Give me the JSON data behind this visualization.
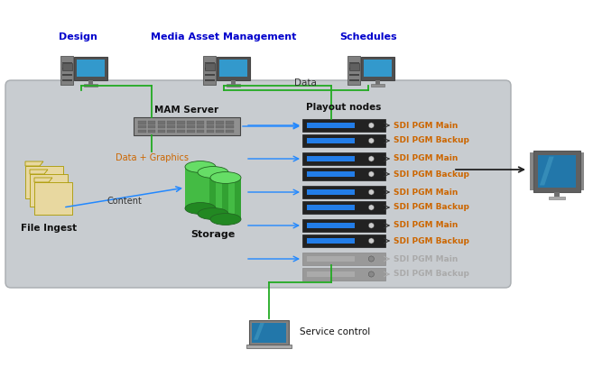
{
  "bg_color": "#ffffff",
  "box_color": "#c8ccd0",
  "box_edge": "#a8acb0",
  "title_design": "Design",
  "title_mam": "Media Asset Management",
  "title_schedules": "Schedules",
  "title_mam_server": "MAM Server",
  "title_playout": "Playout nodes",
  "title_storage": "Storage",
  "title_file_ingest": "File Ingest",
  "label_data_graphics": "Data + Graphics",
  "label_content": "Content",
  "label_data": "Data",
  "label_service": "Service control",
  "sdi_labels": [
    [
      "SDI PGM Main",
      "SDI PGM Backup"
    ],
    [
      "SDI PGM Main",
      "SDI PGM Backup"
    ],
    [
      "SDI PGM Main",
      "SDI PGM Backup"
    ],
    [
      "SDI PGM Main",
      "SDI PGM Backup"
    ],
    [
      "SDI PGM Main",
      "SDI PGM Backup"
    ]
  ],
  "sdi_active": [
    true,
    true,
    true,
    true,
    false
  ],
  "green_color": "#22aa22",
  "blue_arrow_color": "#2288ff",
  "orange_color": "#e07000",
  "sdi_active_color": "#cc6600",
  "sdi_inactive_color": "#aaaaaa",
  "node_active_color": "#222222",
  "node_inactive_color": "#999999",
  "node_stripe_color": "#2288ff",
  "node_stripe_inactive": "#bbbbbb"
}
